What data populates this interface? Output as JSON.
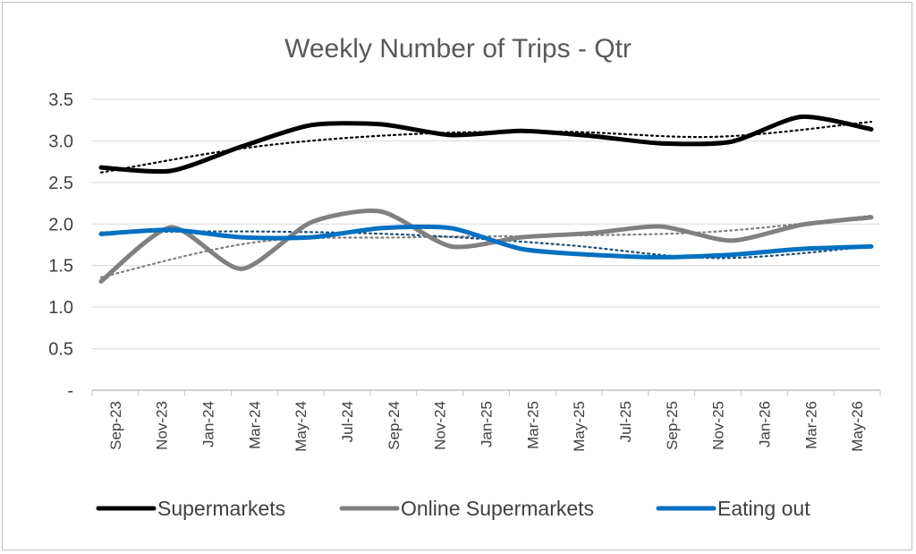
{
  "chart_data": {
    "type": "line",
    "title": "Weekly Number of Trips - Qtr",
    "xlabel": "",
    "ylabel": "",
    "ylim": [
      0,
      3.5
    ],
    "yticks": [
      "-",
      "0.5",
      "1.0",
      "1.5",
      "2.0",
      "2.5",
      "3.0",
      "3.5"
    ],
    "grid": true,
    "legend_position": "bottom",
    "x_tick_labels": [
      "Sep-23",
      "Nov-23",
      "Jan-24",
      "Mar-24",
      "May-24",
      "Jul-24",
      "Sep-24",
      "Nov-24",
      "Jan-25",
      "Mar-25",
      "May-25",
      "Jul-25",
      "Sep-25",
      "Nov-25",
      "Jan-26",
      "Mar-26",
      "May-26"
    ],
    "x": [
      "Sep-23",
      "Dec-23",
      "Mar-24",
      "Jun-24",
      "Sep-24",
      "Dec-24",
      "Mar-25",
      "Jun-25",
      "Sep-25",
      "Dec-25",
      "Mar-26",
      "Jun-26"
    ],
    "series": [
      {
        "name": "Supermarkets",
        "color": "#000000",
        "values": [
          2.68,
          2.64,
          2.93,
          3.19,
          3.2,
          3.07,
          3.12,
          3.06,
          2.97,
          2.99,
          3.29,
          3.14
        ],
        "trend": [
          2.62,
          2.93,
          3.08,
          3.11,
          3.05,
          3.23
        ]
      },
      {
        "name": "Online Supermarkets",
        "color": "#808080",
        "values": [
          1.31,
          1.96,
          1.46,
          2.02,
          2.15,
          1.73,
          1.84,
          1.89,
          1.97,
          1.8,
          1.99,
          2.08
        ],
        "trend": [
          1.36,
          1.78,
          1.84,
          1.86,
          1.91,
          2.1
        ]
      },
      {
        "name": "Eating out",
        "color": "#0070c0",
        "values": [
          1.88,
          1.93,
          1.84,
          1.84,
          1.95,
          1.95,
          1.7,
          1.63,
          1.6,
          1.63,
          1.7,
          1.73
        ],
        "trend": [
          1.9,
          1.91,
          1.87,
          1.75,
          1.59,
          1.73
        ]
      }
    ]
  }
}
